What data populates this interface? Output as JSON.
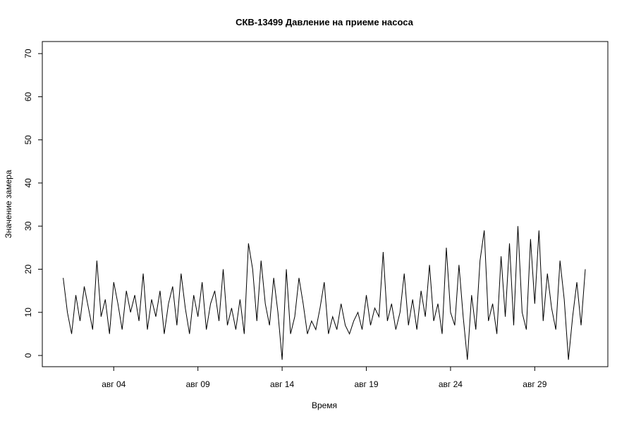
{
  "chart_data": {
    "type": "line",
    "title": "СКВ-13499 Давление на приеме насоса",
    "x_label": "Время",
    "y_label": "Значение замера",
    "x": [
      1,
      1.25,
      1.5,
      1.75,
      2,
      2.25,
      2.5,
      2.75,
      3,
      3.25,
      3.5,
      3.75,
      4,
      4.25,
      4.5,
      4.75,
      5,
      5.25,
      5.5,
      5.75,
      6,
      6.25,
      6.5,
      6.75,
      7,
      7.25,
      7.5,
      7.75,
      8,
      8.25,
      8.5,
      8.75,
      9,
      9.25,
      9.5,
      9.75,
      10,
      10.25,
      10.5,
      10.75,
      11,
      11.25,
      11.5,
      11.75,
      12,
      12.25,
      12.5,
      12.75,
      13,
      13.25,
      13.5,
      13.75,
      14,
      14.25,
      14.5,
      14.75,
      15,
      15.25,
      15.5,
      15.75,
      16,
      16.25,
      16.5,
      16.75,
      17,
      17.25,
      17.5,
      17.75,
      18,
      18.25,
      18.5,
      18.75,
      19,
      19.25,
      19.5,
      19.75,
      20,
      20.25,
      20.5,
      20.75,
      21,
      21.25,
      21.5,
      21.75,
      22,
      22.25,
      22.5,
      22.75,
      23,
      23.25,
      23.5,
      23.75,
      24,
      24.25,
      24.5,
      24.75,
      25,
      25.25,
      25.5,
      25.75,
      26,
      26.25,
      26.5,
      26.75,
      27,
      27.25,
      27.5,
      27.75,
      28,
      28.25,
      28.5,
      28.75,
      29,
      29.25,
      29.5,
      29.75,
      30,
      30.25,
      30.5,
      30.75,
      31,
      31.25,
      31.5,
      31.75,
      32
    ],
    "series": [
      {
        "color": "#000000",
        "values": [
          18,
          10,
          5,
          14,
          8,
          16,
          11,
          6,
          22,
          9,
          13,
          5,
          17,
          12,
          6,
          15,
          10,
          14,
          8,
          19,
          6,
          13,
          9,
          15,
          5,
          12,
          16,
          7,
          19,
          11,
          5,
          14,
          9,
          17,
          6,
          12,
          15,
          8,
          20,
          7,
          11,
          6,
          13,
          5,
          26,
          20,
          8,
          22,
          12,
          7,
          18,
          10,
          -1,
          20,
          5,
          9,
          18,
          12,
          5,
          8,
          6,
          11,
          17,
          5,
          9,
          6,
          12,
          7,
          5,
          8,
          10,
          6,
          14,
          7,
          11,
          9,
          24,
          8,
          12,
          6,
          10,
          19,
          7,
          13,
          6,
          15,
          9,
          21,
          8,
          12,
          5,
          25,
          10,
          7,
          21,
          9,
          -1,
          14,
          6,
          22,
          29,
          8,
          12,
          5,
          23,
          9,
          26,
          7,
          30,
          10,
          6,
          27,
          12,
          29,
          8,
          19,
          11,
          6,
          22,
          13,
          -1,
          9,
          17,
          7,
          20
        ]
      }
    ],
    "xlim": [
      -0.24,
      33.34
    ],
    "ylim": [
      -2.6,
      72.8
    ],
    "xticks": [
      {
        "value": 4,
        "label": "авг 04"
      },
      {
        "value": 9,
        "label": "авг 09"
      },
      {
        "value": 14,
        "label": "авг 14"
      },
      {
        "value": 19,
        "label": "авг 19"
      },
      {
        "value": 24,
        "label": "авг 24"
      },
      {
        "value": 29,
        "label": "авг 29"
      }
    ],
    "yticks": [
      0,
      10,
      20,
      30,
      40,
      50,
      60,
      70
    ]
  }
}
